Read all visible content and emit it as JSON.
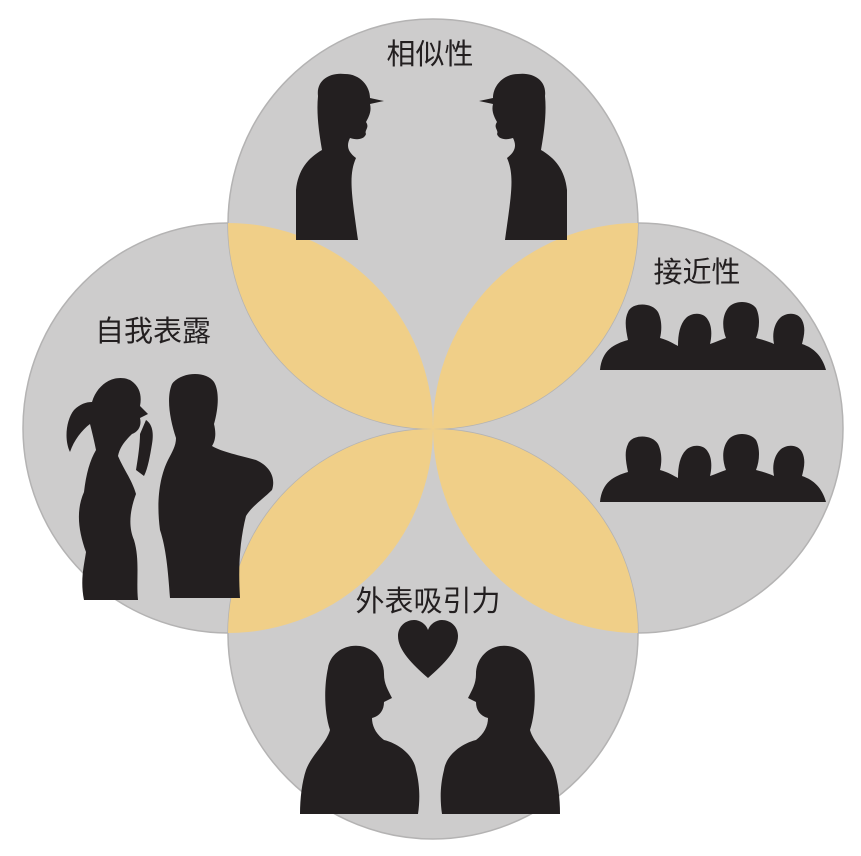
{
  "diagram": {
    "labels": {
      "similarity": "相似性",
      "proximity": "接近性",
      "self_disclosure": "自我表露",
      "attractiveness": "外表吸引力"
    },
    "colors": {
      "circle_fill": "#cdcccc",
      "circle_stroke": "#b4b3b3",
      "overlap_fill": "#f0cf88",
      "silhouette": "#231f20"
    },
    "icons": [
      "similarity-pair-icon",
      "proximity-crowd-icon",
      "whisper-pair-icon",
      "heart-icon",
      "couple-icon"
    ]
  }
}
